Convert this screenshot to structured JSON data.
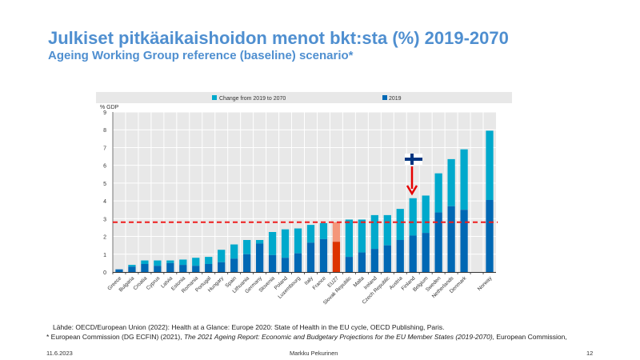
{
  "slide": {
    "title": "Julkiset pitkäaikaishoidon menot bkt:sta (%) 2019-2070",
    "subtitle": "Ageing Working Group reference (baseline) scenario*",
    "source_line1": "Lähde: OECD/European Union (2022): Health at a Glance: Europe 2020: State of Health in the EU cycle, OECD Publishing, Paris.",
    "source_line2_prefix": "* European Commission (DG ECFIN) (2021), ",
    "source_line2_italic": "The 2021 Ageing Report: Economic and Budgetary Projections for the EU Member States (2019-2070),",
    "source_line2_suffix": " European Commission,",
    "date": "11.6.2023",
    "author": "Markku  Pekurinen",
    "page_number": "12"
  },
  "colors": {
    "title": "#4f8fd0",
    "base_2019": "#0068b4",
    "change": "#00a9cc",
    "eu_base": "#dd3300",
    "eu_change": "#f4967a",
    "reference_line": "#ee1c1c",
    "plot_bg": "#e8e8e8",
    "flag_blue": "#003580"
  },
  "chart_data": {
    "type": "bar",
    "stacked": true,
    "title": "",
    "ylabel": "% GDP",
    "xlabel": "",
    "ylim": [
      0,
      9
    ],
    "yticks": [
      0,
      1,
      2,
      3,
      4,
      5,
      6,
      7,
      8,
      9
    ],
    "grid": true,
    "legend_position": "top",
    "categories": [
      "Greece",
      "Bulgaria",
      "Croatia",
      "Cyprus",
      "Latvia",
      "Estonia",
      "Romania",
      "Portugal",
      "Hungary",
      "Spain",
      "Lithuania",
      "Germany",
      "Slovenia",
      "Poland",
      "Luxembourg",
      "Italy",
      "France",
      "EU27",
      "Slovak Republic",
      "Malta",
      "Ireland",
      "Czech Republic",
      "Austria",
      "Finland",
      "Belgium",
      "Sweden",
      "Netherlands",
      "Denmark",
      "",
      "Norway"
    ],
    "series": [
      {
        "name": "2019",
        "values": [
          0.15,
          0.3,
          0.45,
          0.35,
          0.5,
          0.4,
          0.35,
          0.45,
          0.55,
          0.75,
          1.0,
          1.6,
          0.95,
          0.8,
          1.05,
          1.65,
          1.85,
          1.7,
          0.85,
          1.1,
          1.3,
          1.5,
          1.8,
          2.05,
          2.2,
          3.35,
          3.7,
          3.5,
          null,
          4.05
        ]
      },
      {
        "name": "Change from 2019 to 2070",
        "values": [
          0.0,
          0.1,
          0.2,
          0.3,
          0.15,
          0.3,
          0.45,
          0.4,
          0.7,
          0.8,
          0.8,
          0.2,
          1.3,
          1.6,
          1.4,
          1.0,
          0.9,
          1.1,
          2.1,
          1.85,
          1.9,
          1.7,
          1.75,
          2.1,
          2.1,
          2.2,
          2.65,
          3.4,
          null,
          3.9
        ]
      }
    ],
    "legend": [
      "Change from 2019 to 2070",
      "2019"
    ],
    "highlight_category": "EU27",
    "reference_line": {
      "value": 2.8,
      "style": "dashed",
      "label": ""
    },
    "annotation": {
      "category": "Finland",
      "type": "flag-arrow",
      "label": "Finland flag"
    }
  }
}
